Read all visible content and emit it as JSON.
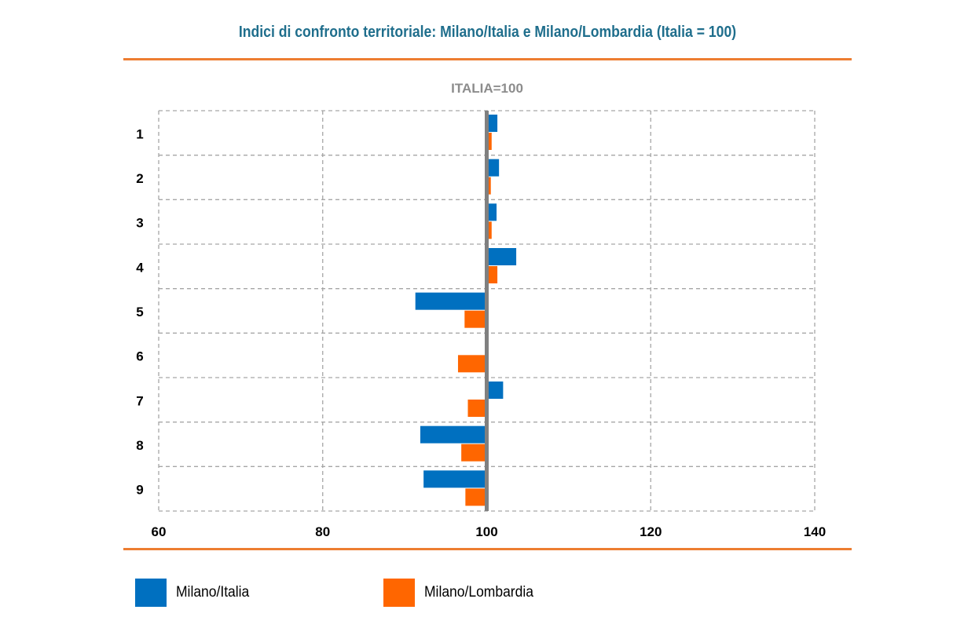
{
  "title": "Indici di confronto territoriale: Milano/Italia e Milano/Lombardia (Italia = 100)",
  "colors": {
    "accent": "#ed7d31",
    "title": "#1f6e8c",
    "milano_italia": "#0070c0",
    "milano_lombardia": "#ff6600",
    "reference": "#808080",
    "grid": "#a6a6a6"
  },
  "chart_data": {
    "type": "bar",
    "orientation": "horizontal",
    "subtitle": "ITALIA=100",
    "reference_value": 100,
    "categories": [
      "1",
      "2",
      "3",
      "4",
      "5",
      "6",
      "7",
      "8",
      "9"
    ],
    "series": [
      {
        "name": "Milano/Italia",
        "color": "#0070c0",
        "values": [
          101.3,
          101.5,
          101.2,
          103.6,
          91.3,
          null,
          102.0,
          91.9,
          92.3
        ]
      },
      {
        "name": "Milano/Lombardia",
        "color": "#ff6600",
        "values": [
          100.6,
          100.5,
          100.6,
          101.3,
          97.3,
          96.5,
          97.7,
          96.9,
          97.4
        ]
      }
    ],
    "xlim": [
      60,
      140
    ],
    "xticks": [
      60,
      80,
      100,
      120,
      140
    ],
    "xlabel": "",
    "ylabel": "",
    "grid": true,
    "legend": "bottom"
  }
}
